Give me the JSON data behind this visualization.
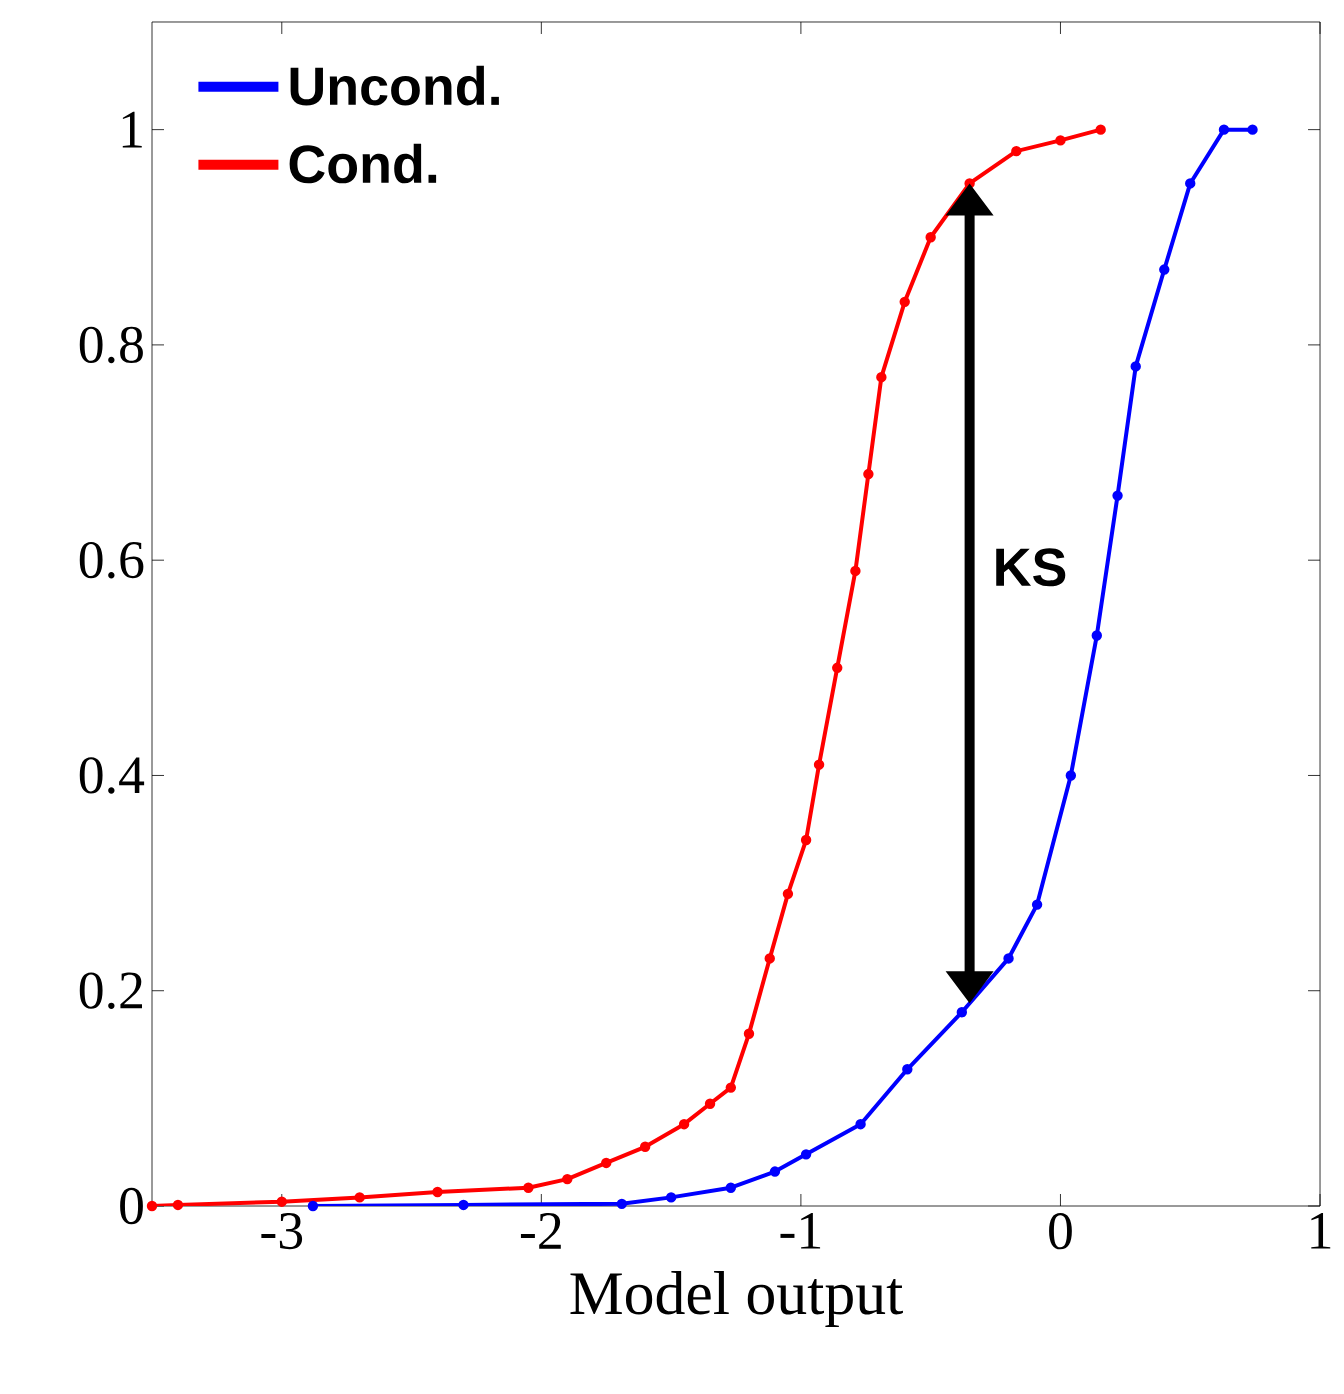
{
  "chart_data": {
    "type": "line",
    "xlabel": "Model output",
    "xlim": [
      -3.5,
      1
    ],
    "ylim": [
      0,
      1.1
    ],
    "xticks": [
      -3,
      -2,
      -1,
      0,
      1
    ],
    "yticks": [
      0,
      0.2,
      0.4,
      0.6,
      0.8,
      1
    ],
    "series": [
      {
        "name": "Uncond.",
        "color": "#0000ff",
        "x": [
          -2.88,
          -2.3,
          -1.69,
          -1.5,
          -1.27,
          -1.1,
          -0.98,
          -0.77,
          -0.59,
          -0.38,
          -0.2,
          -0.09,
          0.04,
          0.14,
          0.22,
          0.29,
          0.4,
          0.5,
          0.63,
          0.74
        ],
        "values": [
          0,
          0.001,
          0.002,
          0.008,
          0.017,
          0.032,
          0.048,
          0.076,
          0.127,
          0.18,
          0.23,
          0.28,
          0.4,
          0.53,
          0.66,
          0.78,
          0.87,
          0.95,
          1.0,
          1.0
        ]
      },
      {
        "name": "Cond.",
        "color": "#ff0000",
        "x": [
          -3.5,
          -3.4,
          -3.0,
          -2.7,
          -2.4,
          -2.05,
          -1.9,
          -1.75,
          -1.6,
          -1.45,
          -1.35,
          -1.27,
          -1.2,
          -1.12,
          -1.05,
          -0.98,
          -0.93,
          -0.86,
          -0.79,
          -0.74,
          -0.69,
          -0.6,
          -0.5,
          -0.35,
          -0.17,
          0,
          0.155
        ],
        "values": [
          0,
          0.001,
          0.004,
          0.008,
          0.013,
          0.017,
          0.025,
          0.04,
          0.055,
          0.076,
          0.095,
          0.11,
          0.16,
          0.23,
          0.29,
          0.34,
          0.41,
          0.5,
          0.59,
          0.68,
          0.77,
          0.84,
          0.9,
          0.95,
          0.98,
          0.99,
          1.0
        ]
      }
    ],
    "annotations": [
      "KS"
    ],
    "legend": "top left",
    "marker": "circle",
    "line_style": "solid",
    "grid": false
  }
}
